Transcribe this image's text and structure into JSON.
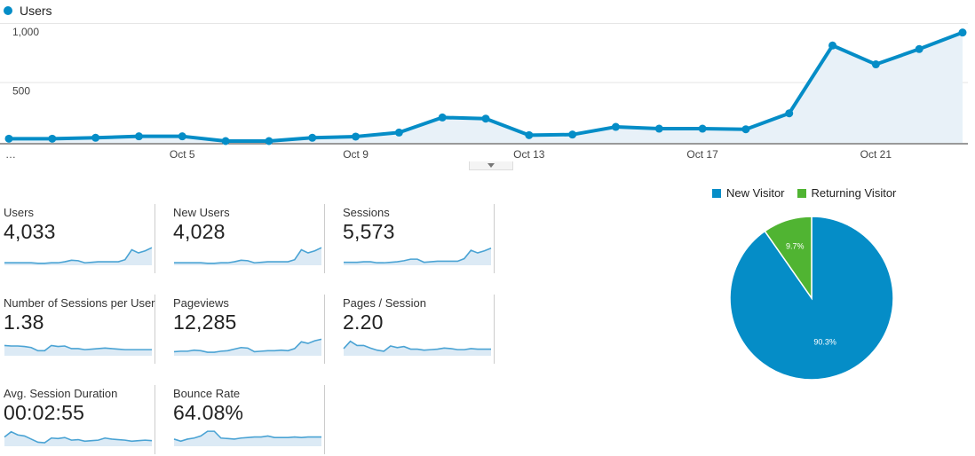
{
  "legend": {
    "series_label": "Users"
  },
  "colors": {
    "accent": "#058dc7",
    "returning": "#50b432",
    "fill": "#e8f1f8",
    "spark_fill": "#dceaf5"
  },
  "chart_data": [
    {
      "type": "area",
      "series": [
        {
          "name": "Users",
          "values": [
            20,
            20,
            28,
            40,
            40,
            0,
            0,
            28,
            38,
            72,
            200,
            190,
            50,
            55,
            120,
            105,
            105,
            100,
            235,
            810,
            650,
            780,
            920
          ]
        }
      ],
      "x": [
        "Oct 1",
        "Oct 2",
        "Oct 3",
        "Oct 4",
        "Oct 5",
        "Oct 6",
        "Oct 7",
        "Oct 8",
        "Oct 9",
        "Oct 10",
        "Oct 11",
        "Oct 12",
        "Oct 13",
        "Oct 14",
        "Oct 15",
        "Oct 16",
        "Oct 17",
        "Oct 18",
        "Oct 19",
        "Oct 20",
        "Oct 21",
        "Oct 22",
        "Oct 23"
      ],
      "ylim": [
        0,
        1000
      ],
      "y_ticks": [
        "1,000",
        "500"
      ],
      "x_tick_labels": [
        "…",
        "Oct 5",
        "Oct 9",
        "Oct 13",
        "Oct 17",
        "Oct 21"
      ]
    },
    {
      "type": "pie",
      "categories": [
        "New Visitor",
        "Returning Visitor"
      ],
      "values": [
        90.3,
        9.7
      ],
      "labels": [
        "90.3%",
        "9.7%"
      ],
      "colors": [
        "#058dc7",
        "#50b432"
      ]
    }
  ],
  "metrics": [
    {
      "label": "Users",
      "value": "4,033",
      "spark": [
        3,
        3,
        3,
        3,
        3,
        2,
        2,
        3,
        3,
        5,
        8,
        7,
        3,
        4,
        5,
        5,
        5,
        5,
        9,
        28,
        22,
        26,
        32
      ]
    },
    {
      "label": "New Users",
      "value": "4,028",
      "spark": [
        3,
        3,
        3,
        3,
        3,
        2,
        2,
        3,
        3,
        5,
        8,
        7,
        3,
        4,
        5,
        5,
        5,
        5,
        9,
        28,
        22,
        26,
        32
      ]
    },
    {
      "label": "Sessions",
      "value": "5,573",
      "spark": [
        4,
        4,
        4,
        5,
        5,
        3,
        3,
        4,
        5,
        7,
        10,
        10,
        4,
        5,
        6,
        6,
        6,
        6,
        11,
        27,
        22,
        26,
        31
      ]
    },
    {
      "label": "Number of Sessions per User",
      "value": "1.38",
      "spark": [
        18,
        17,
        17,
        16,
        14,
        8,
        8,
        18,
        16,
        17,
        12,
        12,
        10,
        11,
        12,
        13,
        12,
        11,
        10,
        10,
        10,
        10,
        10
      ]
    },
    {
      "label": "Pageviews",
      "value": "12,285",
      "spark": [
        6,
        7,
        7,
        9,
        8,
        5,
        5,
        7,
        8,
        11,
        14,
        13,
        6,
        7,
        8,
        8,
        9,
        8,
        12,
        25,
        22,
        27,
        30
      ]
    },
    {
      "label": "Pages / Session",
      "value": "2.20",
      "spark": [
        12,
        26,
        18,
        18,
        13,
        9,
        7,
        17,
        14,
        16,
        11,
        11,
        9,
        10,
        11,
        13,
        12,
        10,
        10,
        12,
        11,
        11,
        11
      ]
    },
    {
      "label": "Avg. Session Duration",
      "value": "00:02:55",
      "spark": [
        16,
        26,
        20,
        18,
        12,
        6,
        5,
        14,
        13,
        15,
        10,
        11,
        8,
        9,
        10,
        14,
        12,
        11,
        10,
        8,
        9,
        10,
        9
      ]
    },
    {
      "label": "Bounce Rate",
      "value": "64.08%",
      "spark": [
        12,
        8,
        12,
        14,
        18,
        27,
        27,
        14,
        13,
        12,
        14,
        15,
        16,
        16,
        18,
        15,
        15,
        15,
        16,
        15,
        16,
        16,
        16
      ]
    }
  ]
}
